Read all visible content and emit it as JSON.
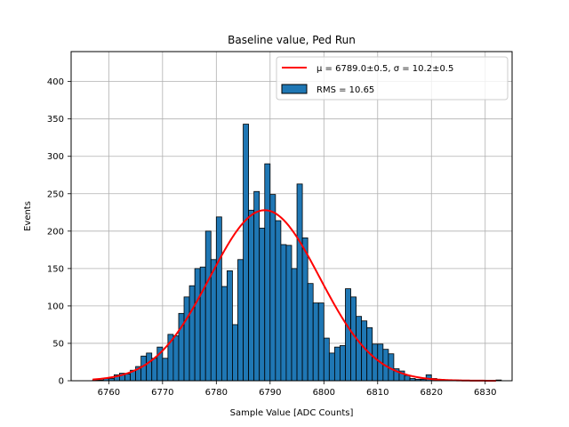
{
  "chart_data": {
    "type": "histogram",
    "title": "Baseline value, Ped Run",
    "xlabel": "Sample Value [ADC Counts]",
    "ylabel": "Events",
    "xlim": [
      6753,
      6835
    ],
    "ylim": [
      0,
      440
    ],
    "xticks": [
      6760,
      6770,
      6780,
      6790,
      6800,
      6810,
      6820,
      6830
    ],
    "yticks": [
      0,
      50,
      100,
      150,
      200,
      250,
      300,
      350,
      400
    ],
    "grid": true,
    "bar_color": "#1f77b4",
    "bar_edge_color": "#000000",
    "fit_color": "#ff0000",
    "bins": {
      "start": 6757,
      "width": 1,
      "counts": [
        1,
        1,
        3,
        3,
        8,
        10,
        9,
        14,
        19,
        33,
        37,
        30,
        45,
        30,
        62,
        60,
        90,
        112,
        127,
        150,
        152,
        200,
        162,
        219,
        126,
        147,
        75,
        162,
        343,
        228,
        253,
        204,
        290,
        249,
        214,
        182,
        181,
        150,
        263,
        191,
        130,
        104,
        104,
        57,
        37,
        45,
        47,
        123,
        112,
        86,
        80,
        71,
        49,
        49,
        42,
        36,
        16,
        13,
        7,
        3,
        2,
        2,
        8,
        3,
        1,
        1,
        1,
        1,
        0,
        0,
        0,
        0,
        0,
        0,
        0,
        1
      ]
    },
    "fit": {
      "mu": 6789.0,
      "sigma": 10.2,
      "amplitude": 228,
      "x_range": [
        6757,
        6832
      ]
    },
    "legend": {
      "position": "top-right",
      "entries": [
        {
          "type": "line",
          "label": "μ = 6789.0±0.5, σ = 10.2±0.5"
        },
        {
          "type": "bar",
          "label": "RMS = 10.65"
        }
      ]
    }
  }
}
